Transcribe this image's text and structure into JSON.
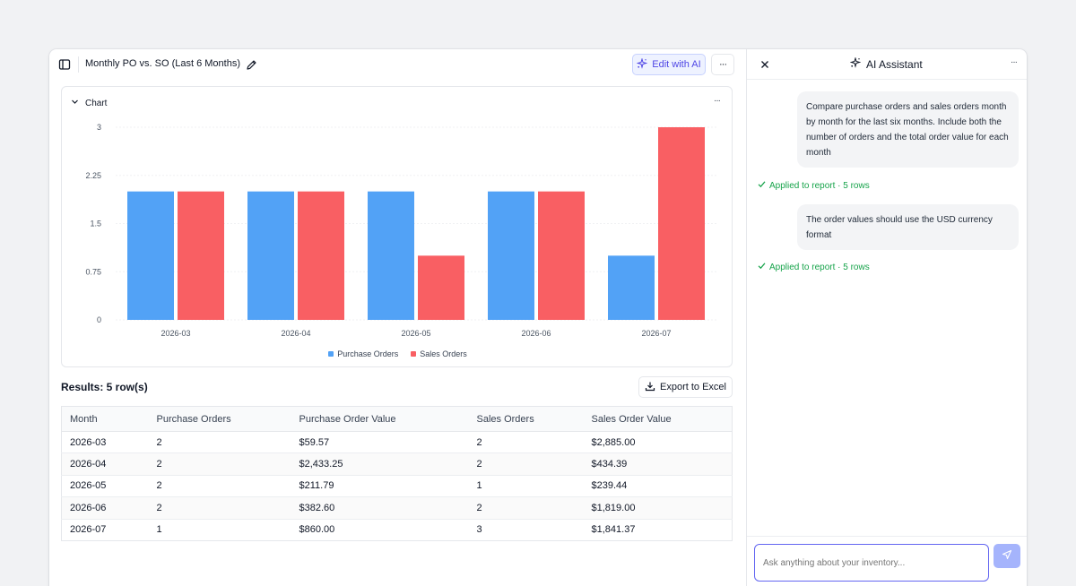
{
  "header": {
    "title": "Monthly PO vs. SO (Last 6 Months)",
    "edit_ai_label": "Edit with AI",
    "more_label": "···"
  },
  "chart_section": {
    "toggle_label": "Chart",
    "more_label": "···"
  },
  "chart_data": {
    "type": "bar",
    "categories": [
      "2026-03",
      "2026-04",
      "2026-05",
      "2026-06",
      "2026-07"
    ],
    "series": [
      {
        "name": "Purchase Orders",
        "values": [
          2,
          2,
          2,
          2,
          1
        ],
        "color": "#52a2f6"
      },
      {
        "name": "Sales Orders",
        "values": [
          2,
          2,
          1,
          2,
          3
        ],
        "color": "#f95f63"
      }
    ],
    "yticks": [
      "0",
      "0.75",
      "1.5",
      "2.25",
      "3"
    ],
    "ylim": [
      0,
      3
    ],
    "grid": true,
    "legend_position": "bottom"
  },
  "results": {
    "title": "Results: 5 row(s)",
    "export_label": "Export to Excel",
    "columns": [
      "Month",
      "Purchase Orders",
      "Purchase Order Value",
      "Sales Orders",
      "Sales Order Value"
    ],
    "rows": [
      [
        "2026-03",
        "2",
        "$59.57",
        "2",
        "$2,885.00"
      ],
      [
        "2026-04",
        "2",
        "$2,433.25",
        "2",
        "$434.39"
      ],
      [
        "2026-05",
        "2",
        "$211.79",
        "1",
        "$239.44"
      ],
      [
        "2026-06",
        "2",
        "$382.60",
        "2",
        "$1,819.00"
      ],
      [
        "2026-07",
        "1",
        "$860.00",
        "3",
        "$1,841.37"
      ]
    ]
  },
  "ai_panel": {
    "title": "AI Assistant",
    "more_label": "···",
    "messages": [
      {
        "text": "Compare purchase orders and sales orders month by month for the last six months. Include both the number of orders and the total order value for each month",
        "status": "Applied to report · 5 rows"
      },
      {
        "text": "The order values should use the USD currency format",
        "status": "Applied to report · 5 rows"
      }
    ],
    "input_placeholder": "Ask anything about your inventory..."
  }
}
